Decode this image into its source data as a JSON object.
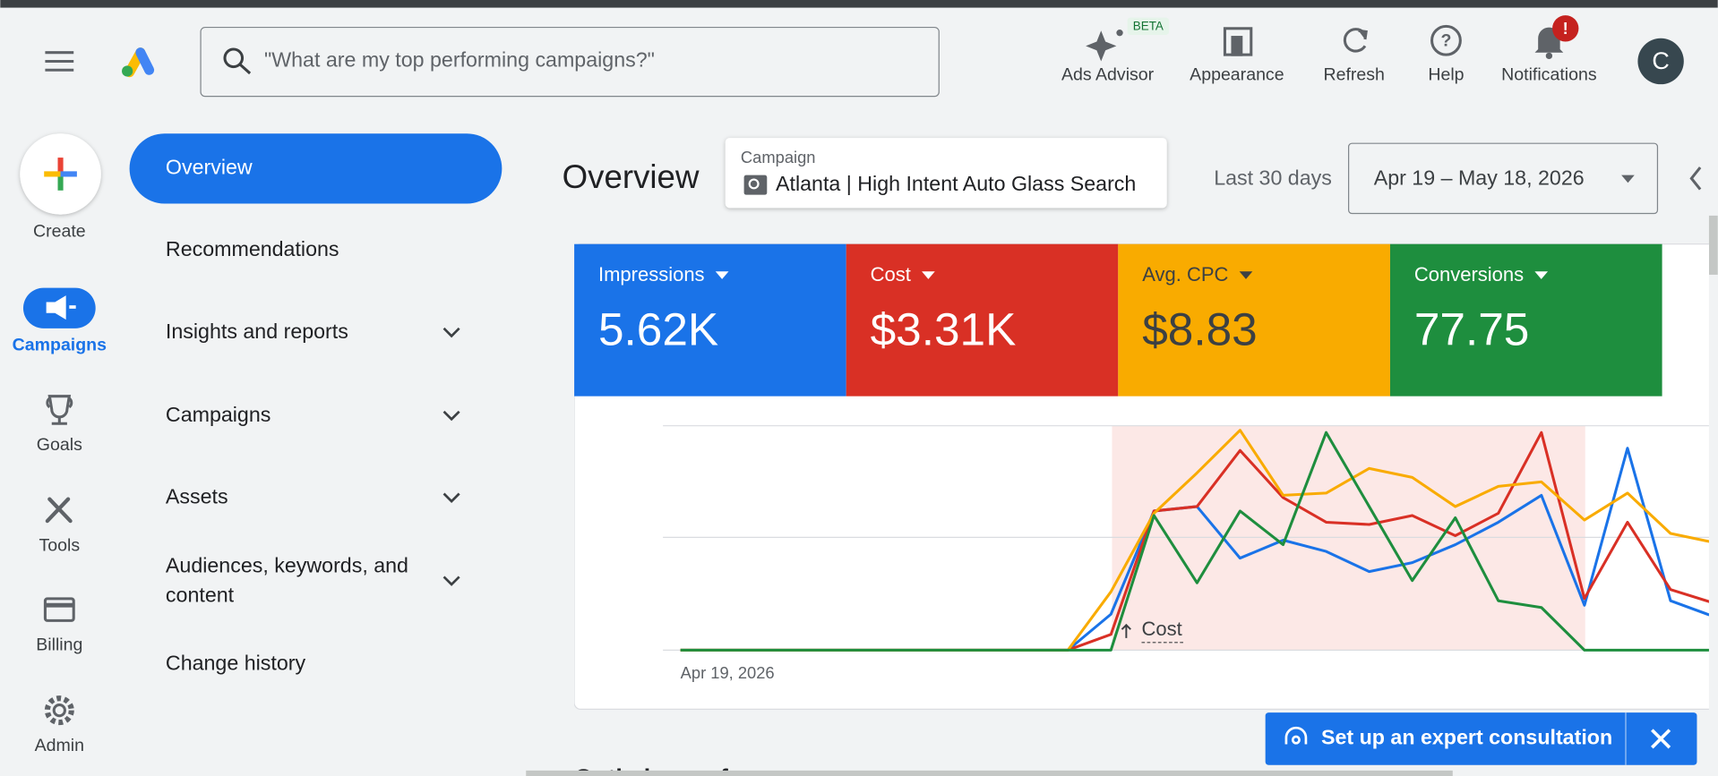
{
  "top_bar": {
    "search_placeholder": "\"What are my top performing campaigns?\"",
    "actions": [
      {
        "label": "Ads Advisor",
        "badge": "BETA"
      },
      {
        "label": "Appearance"
      },
      {
        "label": "Refresh"
      },
      {
        "label": "Help"
      },
      {
        "label": "Notifications",
        "badge": "!"
      }
    ],
    "avatar": "C"
  },
  "rail": [
    "Create",
    "Campaigns",
    "Goals",
    "Tools",
    "Billing",
    "Admin"
  ],
  "nav": [
    [
      "Overview"
    ],
    [
      "Recommendations"
    ],
    [
      "Insights and reports"
    ],
    [
      "Campaigns"
    ],
    [
      "Assets"
    ],
    [
      "Audiences, keywords, and",
      "content"
    ],
    [
      "Change history"
    ]
  ],
  "header": {
    "title": "Overview",
    "campaign_label": "Campaign",
    "campaign_name": "Atlanta | High Intent Auto Glass Search",
    "range_label": "Last 30 days",
    "date_range": "Apr 19 – May 18, 2026"
  },
  "metrics": [
    "5.62K",
    "$3.31K",
    "$8.83",
    "77.75"
  ],
  "chart_data": {
    "type": "line",
    "categories": [
      "Apr 19, 2026",
      null,
      null,
      null,
      null,
      null,
      null,
      null,
      null,
      null,
      null,
      null,
      null,
      null,
      null,
      null,
      null,
      null,
      null,
      null,
      null,
      null,
      null,
      null,
      null
    ],
    "ylim": [
      0,
      100
    ],
    "annotation": "Cost",
    "series": [
      {
        "name": "Impressions",
        "color": "#1a73e8",
        "values": [
          0,
          0,
          0,
          0,
          0,
          0,
          0,
          0,
          0,
          0,
          16,
          62,
          64,
          41,
          49,
          44,
          35,
          39,
          47,
          57,
          69,
          20,
          90,
          22,
          15
        ]
      },
      {
        "name": "Cost",
        "color": "#d93025",
        "values": [
          0,
          0,
          0,
          0,
          0,
          0,
          0,
          0,
          0,
          0,
          7,
          62,
          64,
          89,
          68,
          57,
          56,
          60,
          51,
          61,
          97,
          23,
          57,
          27,
          21
        ]
      },
      {
        "name": "Avg. CPC",
        "color": "#f9ab00",
        "values": [
          0,
          0,
          0,
          0,
          0,
          0,
          0,
          0,
          0,
          0,
          26,
          61,
          79,
          98,
          69,
          70,
          81,
          77,
          64,
          73,
          75,
          58,
          70,
          52,
          48
        ]
      },
      {
        "name": "Conversions",
        "color": "#1e8e3e",
        "values": [
          0,
          0,
          0,
          0,
          0,
          0,
          0,
          0,
          0,
          0,
          0,
          60,
          30,
          62,
          47,
          97,
          64,
          31,
          59,
          22,
          19,
          0,
          0,
          0,
          0
        ]
      }
    ]
  },
  "footer": {
    "consultation": "Set up an expert consultation",
    "next_section": "Optimize performance"
  }
}
